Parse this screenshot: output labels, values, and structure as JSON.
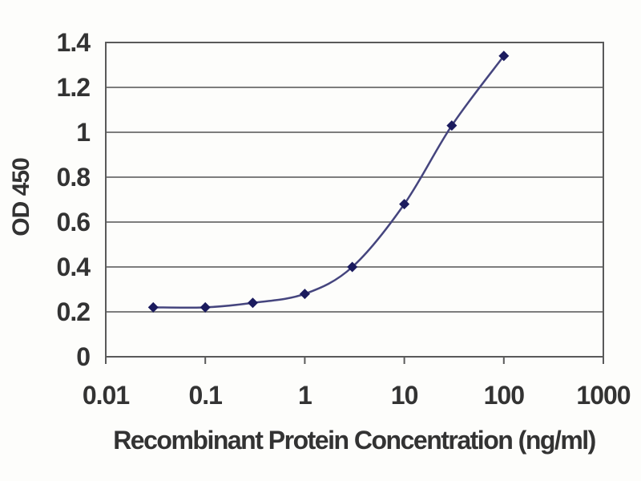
{
  "chart_data": {
    "type": "line",
    "title": "",
    "xlabel": "Recombinant Protein Concentration (ng/ml)",
    "ylabel": "OD 450",
    "x_scale": "log",
    "x": [
      0.03,
      0.1,
      0.3,
      1,
      3,
      10,
      30,
      100
    ],
    "series": [
      {
        "name": "OD 450",
        "values": [
          0.22,
          0.22,
          0.24,
          0.28,
          0.4,
          0.68,
          1.03,
          1.34
        ]
      }
    ],
    "xlim": [
      0.01,
      1000
    ],
    "ylim": [
      0,
      1.4
    ],
    "x_tick_values": [
      0.01,
      0.1,
      1,
      10,
      100,
      1000
    ],
    "x_tick_labels": [
      "0.01",
      "0.1",
      "1",
      "10",
      "100",
      "1000"
    ],
    "y_tick_values": [
      0,
      0.2,
      0.4,
      0.6,
      0.8,
      1,
      1.2,
      1.4
    ],
    "y_tick_labels": [
      "0",
      "0.2",
      "0.4",
      "0.6",
      "0.8",
      "1",
      "1.2",
      "1.4"
    ],
    "grid": "horizontal",
    "legend": "none",
    "marker": "diamond",
    "colors": {
      "line": "#45457e",
      "marker": "#1b1b5e",
      "grid": "#7d7d7d",
      "frame": "#5a5a5a",
      "text": "#333333",
      "background": "#fdfdfb"
    }
  }
}
